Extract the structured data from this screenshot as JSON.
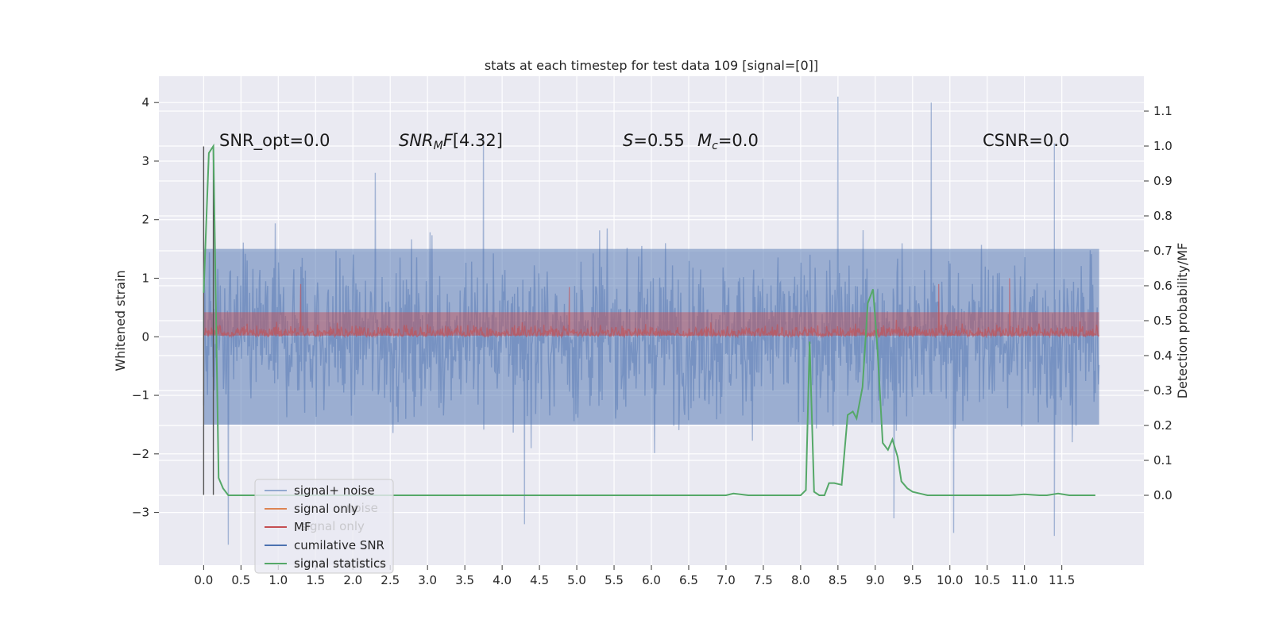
{
  "chart_data": {
    "type": "line",
    "title": "stats at each timestep for test data 109 [signal=[0]]",
    "xlabel": "",
    "ylabel": "Whitened strain",
    "y2label": "Detection probability/MF",
    "xlim": [
      -0.6,
      12.6
    ],
    "ylim": [
      -3.9,
      4.45
    ],
    "y2lim": [
      -0.2,
      1.2
    ],
    "x_ticks": [
      "0.0",
      "0.5",
      "1.0",
      "1.5",
      "2.0",
      "2.5",
      "3.0",
      "3.5",
      "4.0",
      "4.5",
      "5.0",
      "5.5",
      "6.0",
      "6.5",
      "7.0",
      "7.5",
      "8.0",
      "8.5",
      "9.0",
      "9.5",
      "10.0",
      "10.5",
      "11.0",
      "11.5"
    ],
    "y_ticks": [
      "4",
      "3",
      "2",
      "1",
      "0",
      "−1",
      "−2",
      "−3"
    ],
    "y2_ticks": [
      "1.1",
      "1.0",
      "0.9",
      "0.8",
      "0.7",
      "0.6",
      "0.5",
      "0.4",
      "0.3",
      "0.2",
      "0.1",
      "0.0"
    ],
    "grid": true,
    "legend_position": "lower-left",
    "annotations": {
      "snr_opt": "SNR_opt=0.0",
      "snr_mf": "[4.32]",
      "s_val": "=0.55",
      "mc_val": "=0.0",
      "csnr": "CSNR=0.0"
    },
    "legend": [
      {
        "label": "signal+ noise",
        "color": "#4c72b0"
      },
      {
        "label": "signal only",
        "color": "#dd8452"
      },
      {
        "label": "MF",
        "color": "#c44e52"
      },
      {
        "label": "cumilative SNR",
        "color": "#4c72b0"
      },
      {
        "label": "signal statistics",
        "color": "#55a868"
      }
    ],
    "legend_ghost": [
      "noise",
      "signal only",
      "signal statistics"
    ],
    "series": [
      {
        "name": "signal+ noise",
        "axis": "left",
        "color": "#4c72b0",
        "summary": {
          "x_start": 0.0,
          "x_end": 12.0,
          "typical_min": -1.5,
          "typical_max": 1.5,
          "peaks_max": [
            [
              2.3,
              2.8
            ],
            [
              3.75,
              3.45
            ],
            [
              8.5,
              4.1
            ],
            [
              9.75,
              4.0
            ],
            [
              11.4,
              3.3
            ]
          ],
          "peaks_min": [
            [
              0.33,
              -3.55
            ],
            [
              4.3,
              -3.2
            ],
            [
              9.25,
              -3.1
            ],
            [
              10.05,
              -3.35
            ],
            [
              11.4,
              -3.4
            ]
          ]
        }
      },
      {
        "name": "MF",
        "axis": "left",
        "color": "#c44e52",
        "summary": {
          "x_start": 0.0,
          "x_end": 12.0,
          "typical_min": 0.0,
          "typical_max": 0.55,
          "peaks_max": [
            [
              1.3,
              0.9
            ],
            [
              4.9,
              0.85
            ],
            [
              9.85,
              0.9
            ],
            [
              10.8,
              1.0
            ]
          ]
        }
      },
      {
        "name": "signal statistics",
        "axis": "right",
        "color": "#55a868",
        "x": [
          0.0,
          0.07,
          0.13,
          0.2,
          0.26,
          0.33,
          0.5,
          1.0,
          2.0,
          3.0,
          3.9,
          4.1,
          5.0,
          6.0,
          7.0,
          7.1,
          7.3,
          8.0,
          8.07,
          8.12,
          8.18,
          8.25,
          8.32,
          8.38,
          8.45,
          8.55,
          8.63,
          8.7,
          8.75,
          8.83,
          8.9,
          8.97,
          9.03,
          9.1,
          9.17,
          9.23,
          9.3,
          9.35,
          9.43,
          9.5,
          9.6,
          9.7,
          9.8,
          10.0,
          10.5,
          10.8,
          11.0,
          11.2,
          11.3,
          11.45,
          11.6,
          11.7,
          11.8,
          11.95
        ],
        "values": [
          0.58,
          0.98,
          1.0,
          0.05,
          0.02,
          0.0,
          0.0,
          0.0,
          0.0,
          0.0,
          0.0,
          0.0,
          0.0,
          0.0,
          0.0,
          0.005,
          0.0,
          0.0,
          0.015,
          0.44,
          0.01,
          0.0,
          0.0,
          0.035,
          0.035,
          0.03,
          0.23,
          0.24,
          0.22,
          0.31,
          0.55,
          0.59,
          0.42,
          0.15,
          0.13,
          0.16,
          0.11,
          0.04,
          0.02,
          0.01,
          0.005,
          0.0,
          0.0,
          0.0,
          0.0,
          0.0,
          0.003,
          0.0,
          0.0,
          0.005,
          0.0,
          0.0,
          0.0,
          0.0
        ]
      }
    ]
  }
}
